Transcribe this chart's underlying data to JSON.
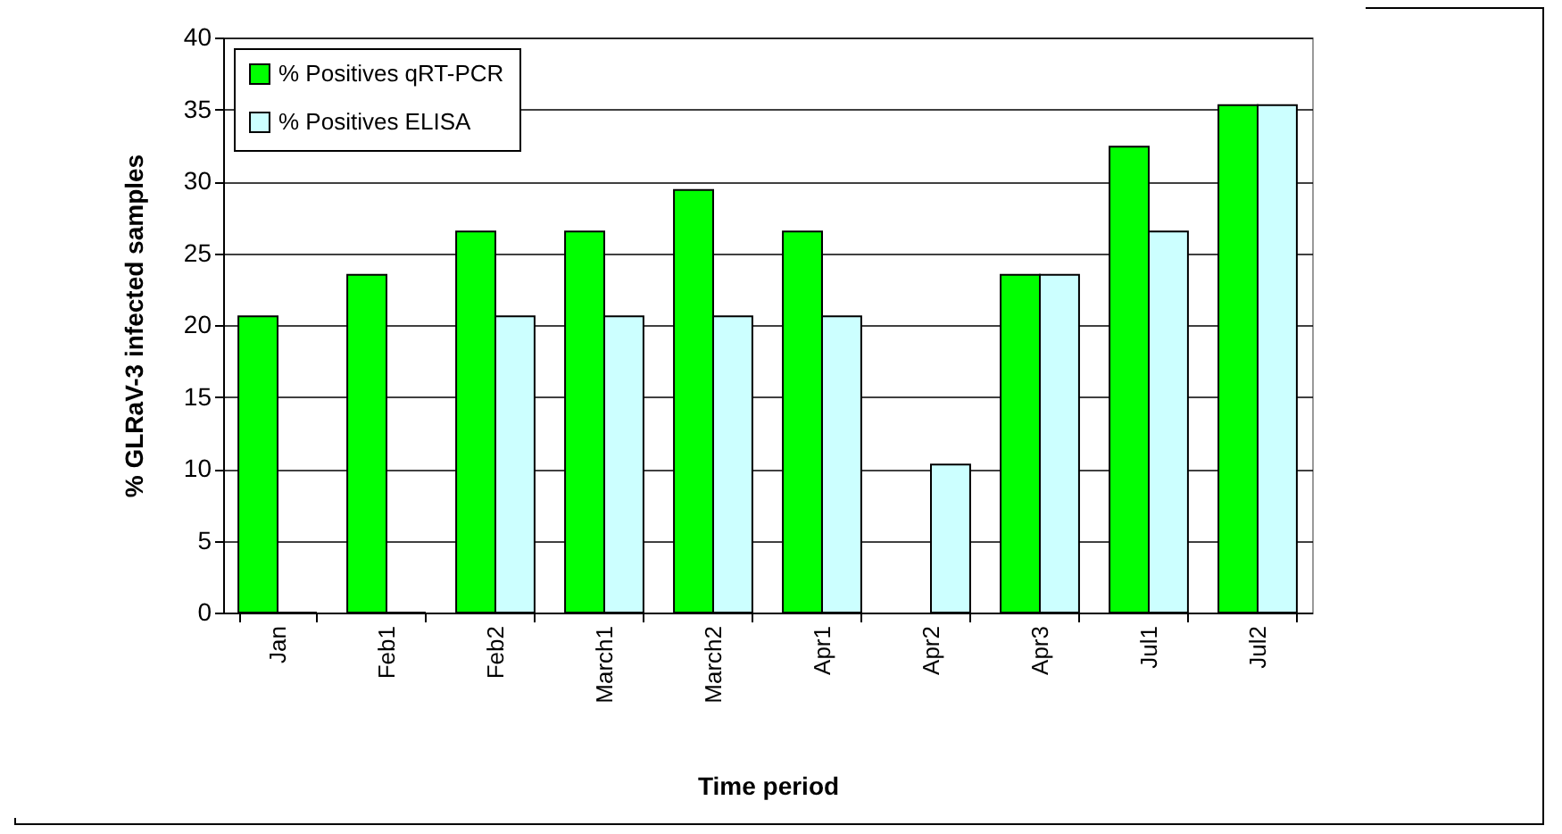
{
  "chart_data": {
    "type": "bar",
    "xlabel": "Time period",
    "ylabel": "% GLRaV-3 infected samples",
    "categories": [
      "Jan",
      "Feb1",
      "Feb2",
      "March1",
      "March2",
      "Apr1",
      "Apr2",
      "Apr3",
      "Jul1",
      "Jul2"
    ],
    "series": [
      {
        "name": "% Positives qRT-PCR",
        "color": "#00ff00",
        "values": [
          20.6,
          23.5,
          26.5,
          26.5,
          29.4,
          26.5,
          null,
          23.5,
          32.4,
          35.3
        ]
      },
      {
        "name": "% Positives ELISA",
        "color": "#ccffff",
        "values": [
          0,
          0,
          20.6,
          20.6,
          20.6,
          20.6,
          10.3,
          23.5,
          26.5,
          35.3
        ]
      }
    ],
    "ylim": [
      0,
      40
    ],
    "yticks": [
      0,
      5,
      10,
      15,
      20,
      25,
      30,
      35,
      40
    ],
    "grid": "y",
    "legend": "top left"
  }
}
